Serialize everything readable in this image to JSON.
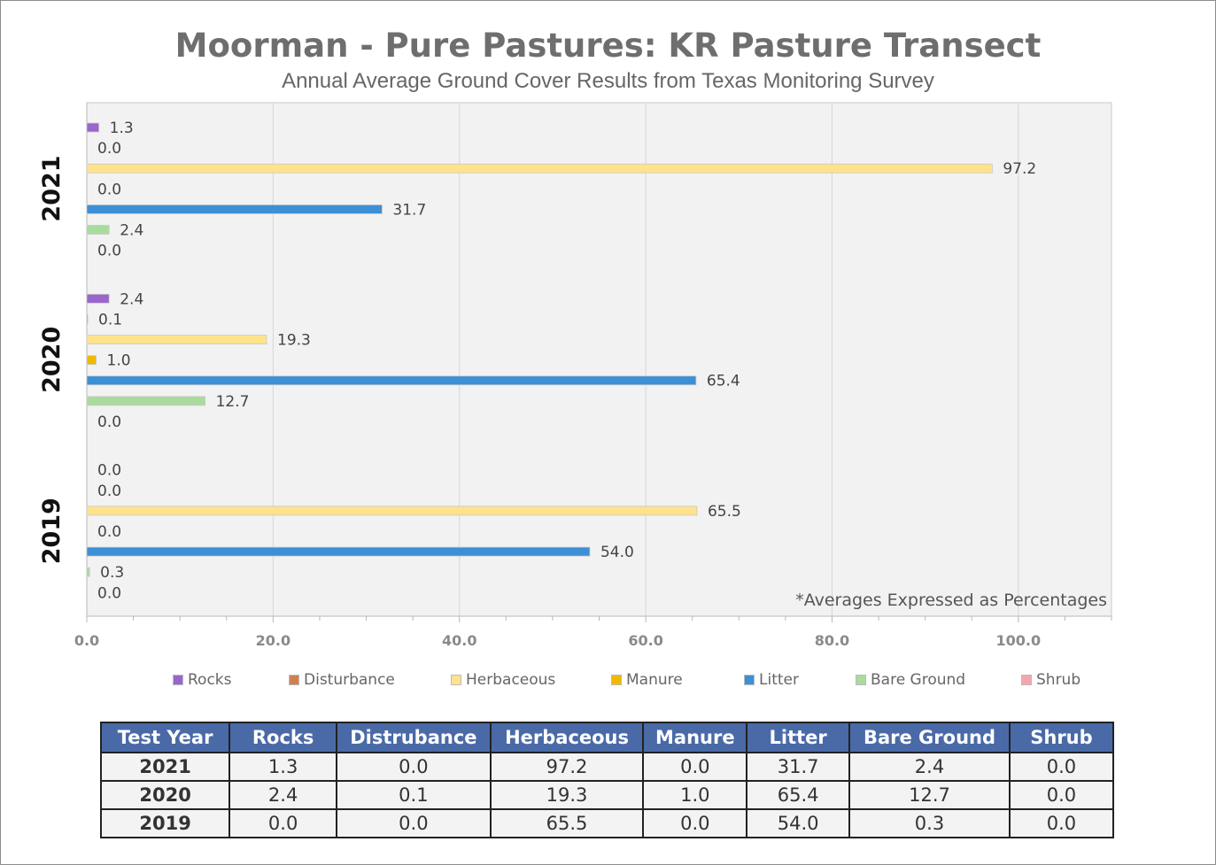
{
  "chart_data": {
    "type": "bar",
    "orientation": "horizontal",
    "title": "Moorman - Pure Pastures: KR Pasture Transect",
    "subtitle": "Annual Average Ground Cover Results from Texas Monitoring Survey",
    "annotation": "*Averages Expressed as Percentages",
    "categories": [
      "2021",
      "2020",
      "2019"
    ],
    "xlim": [
      0,
      110
    ],
    "x_ticks": [
      "0.0",
      "20.0",
      "40.0",
      "60.0",
      "80.0",
      "100.0"
    ],
    "grid": true,
    "legend_position": "bottom",
    "series": [
      {
        "name": "Rocks",
        "color": "#9966cc",
        "values": [
          1.3,
          2.4,
          0.0
        ],
        "labels": [
          "1.3",
          "2.4",
          "0.0"
        ]
      },
      {
        "name": "Disturbance",
        "color": "#d08050",
        "values": [
          0.0,
          0.1,
          0.0
        ],
        "labels": [
          "0.0",
          "0.1",
          "0.0"
        ]
      },
      {
        "name": "Herbaceous",
        "color": "#ffe28c",
        "values": [
          97.2,
          19.3,
          65.5
        ],
        "labels": [
          "97.2",
          "19.3",
          "65.5"
        ]
      },
      {
        "name": "Manure",
        "color": "#f2b800",
        "values": [
          0.0,
          1.0,
          0.0
        ],
        "labels": [
          "0.0",
          "1.0",
          "0.0"
        ]
      },
      {
        "name": "Litter",
        "color": "#3d8fd6",
        "values": [
          31.7,
          65.4,
          54.0
        ],
        "labels": [
          "31.7",
          "65.4",
          "54.0"
        ]
      },
      {
        "name": "Bare Ground",
        "color": "#a9dc9c",
        "values": [
          2.4,
          12.7,
          0.3
        ],
        "labels": [
          "2.4",
          "12.7",
          "0.3"
        ]
      },
      {
        "name": "Shrub",
        "color": "#f4a6ad",
        "values": [
          0.0,
          0.0,
          0.0
        ],
        "labels": [
          "0.0",
          "0.0",
          "0.0"
        ]
      }
    ]
  },
  "table": {
    "headers": [
      "Test Year",
      "Rocks",
      "Distrubance",
      "Herbaceous",
      "Manure",
      "Litter",
      "Bare Ground",
      "Shrub"
    ],
    "rows": [
      [
        "2021",
        "1.3",
        "0.0",
        "97.2",
        "0.0",
        "31.7",
        "2.4",
        "0.0"
      ],
      [
        "2020",
        "2.4",
        "0.1",
        "19.3",
        "1.0",
        "65.4",
        "12.7",
        "0.0"
      ],
      [
        "2019",
        "0.0",
        "0.0",
        "65.5",
        "0.0",
        "54.0",
        "0.3",
        "0.0"
      ]
    ]
  }
}
